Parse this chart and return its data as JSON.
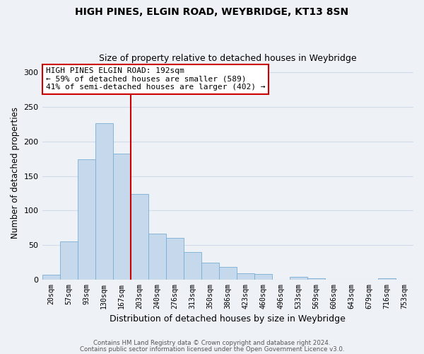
{
  "title": "HIGH PINES, ELGIN ROAD, WEYBRIDGE, KT13 8SN",
  "subtitle": "Size of property relative to detached houses in Weybridge",
  "xlabel": "Distribution of detached houses by size in Weybridge",
  "ylabel": "Number of detached properties",
  "bar_labels": [
    "20sqm",
    "57sqm",
    "93sqm",
    "130sqm",
    "167sqm",
    "203sqm",
    "240sqm",
    "276sqm",
    "313sqm",
    "350sqm",
    "386sqm",
    "423sqm",
    "460sqm",
    "496sqm",
    "533sqm",
    "569sqm",
    "606sqm",
    "643sqm",
    "679sqm",
    "716sqm",
    "753sqm"
  ],
  "bar_values": [
    7,
    56,
    174,
    226,
    182,
    124,
    67,
    61,
    40,
    25,
    19,
    10,
    9,
    0,
    4,
    2,
    0,
    0,
    0,
    2,
    0
  ],
  "bar_color": "#c5d8ec",
  "bar_edge_color": "#7aafd4",
  "vline_color": "#cc0000",
  "annotation_title": "HIGH PINES ELGIN ROAD: 192sqm",
  "annotation_line1": "← 59% of detached houses are smaller (589)",
  "annotation_line2": "41% of semi-detached houses are larger (402) →",
  "annotation_box_color": "#ffffff",
  "annotation_box_edge": "#cc0000",
  "ylim": [
    0,
    310
  ],
  "footer1": "Contains HM Land Registry data © Crown copyright and database right 2024.",
  "footer2": "Contains public sector information licensed under the Open Government Licence v3.0.",
  "bg_color": "#eef2f7",
  "grid_color": "#d0dce8"
}
